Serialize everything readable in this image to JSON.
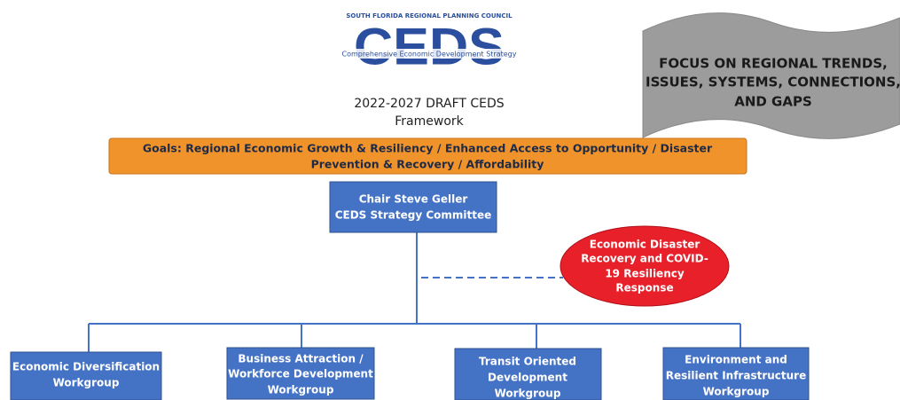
{
  "logo": {
    "council": "SOUTH FLORIDA REGIONAL PLANNING COUNCIL",
    "acronym": "CEDS",
    "tagline": "Comprehensive Economic Development Strategy"
  },
  "title": [
    "2022-2027 DRAFT CEDS",
    "Framework"
  ],
  "banner": [
    "FOCUS ON REGIONAL TRENDS,",
    "ISSUES, SYSTEMS, CONNECTIONS,",
    "AND GAPS"
  ],
  "goals": [
    "Goals:  Regional Economic Growth & Resiliency / Enhanced Access to Opportunity / Disaster",
    "Prevention & Recovery / Affordability"
  ],
  "chair": [
    "Chair Steve Geller",
    "CEDS Strategy Committee"
  ],
  "response": [
    "Economic Disaster",
    "Recovery and COVID-",
    "19  Resiliency",
    "Response"
  ],
  "workgroups": [
    [
      "Economic Diversification",
      "Workgroup"
    ],
    [
      "Business Attraction /",
      "Workforce Development",
      "Workgroup"
    ],
    [
      "Transit Oriented",
      "Development",
      "Workgroup"
    ],
    [
      "Environment and",
      "Resilient Infrastructure",
      "Workgroup"
    ]
  ]
}
